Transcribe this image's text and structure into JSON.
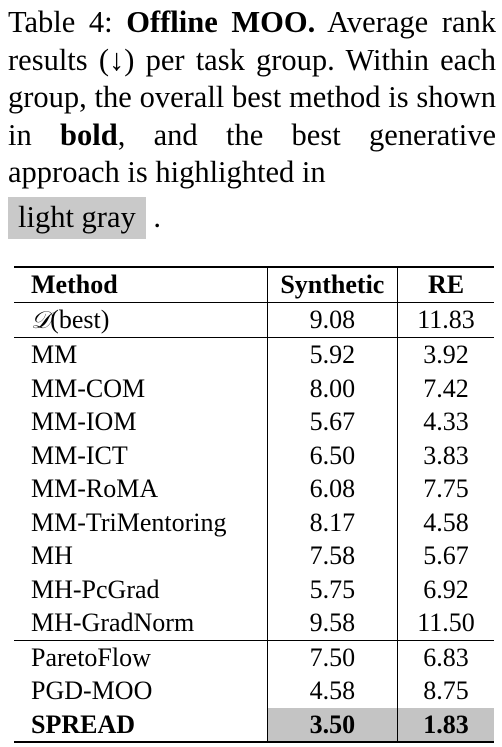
{
  "caption": {
    "label": "Table 4:",
    "title": "Offline MOO.",
    "text_a": "Average rank results (↓) per task group. Within each group, the overall best method is shown in",
    "bold_word": "bold",
    "text_b": ", and the best generative approach is highlighted in",
    "highlight_phrase": "light gray",
    "text_end": "."
  },
  "table": {
    "headers": [
      "Method",
      "Synthetic",
      "RE"
    ],
    "reference": {
      "method_symbol": "𝒟",
      "method_suffix": "(best)",
      "synthetic": "9.08",
      "re": "11.83"
    },
    "groups": [
      [
        {
          "method": "MM",
          "synthetic": "5.92",
          "re": "3.92"
        },
        {
          "method": "MM-COM",
          "synthetic": "8.00",
          "re": "7.42"
        },
        {
          "method": "MM-IOM",
          "synthetic": "5.67",
          "re": "4.33"
        },
        {
          "method": "MM-ICT",
          "synthetic": "6.50",
          "re": "3.83"
        },
        {
          "method": "MM-RoMA",
          "synthetic": "6.08",
          "re": "7.75"
        },
        {
          "method": "MM-TriMentoring",
          "synthetic": "8.17",
          "re": "4.58"
        },
        {
          "method": "MH",
          "synthetic": "7.58",
          "re": "5.67"
        },
        {
          "method": "MH-PcGrad",
          "synthetic": "5.75",
          "re": "6.92"
        },
        {
          "method": "MH-GradNorm",
          "synthetic": "9.58",
          "re": "11.50"
        }
      ],
      [
        {
          "method": "ParetoFlow",
          "synthetic": "7.50",
          "re": "6.83"
        },
        {
          "method": "PGD-MOO",
          "synthetic": "4.58",
          "re": "8.75"
        },
        {
          "method": "SPREAD",
          "synthetic": "3.50",
          "re": "1.83"
        }
      ]
    ],
    "highlight_color": "#c4c4c4"
  }
}
